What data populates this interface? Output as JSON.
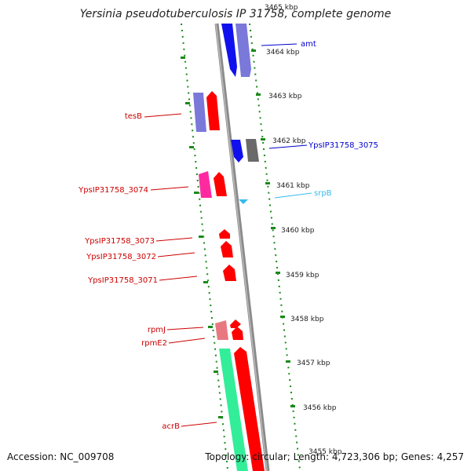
{
  "title": "Yersinia pseudotuberculosis IP 31758, complete genome",
  "footer": {
    "accession": "Accession: NC_009708",
    "topology": "Topology: circular; Length: 4,723,306 bp; Genes: 4,257"
  },
  "colors": {
    "forward_gene": "#ff0000",
    "forward_dark": "#1010ee",
    "reverse_blue": "#7a78d8",
    "label_red": "#cc0000",
    "label_blue": "#0000cc",
    "label_cyan": "#33bbee",
    "tick_green": "#1a8a1a",
    "backbone": "#8a8a8a"
  },
  "ticks": [
    "3465 kbp",
    "3464 kbp",
    "3463 kbp",
    "3462 kbp",
    "3461 kbp",
    "3460 kbp",
    "3459 kbp",
    "3458 kbp",
    "3457 kbp",
    "3456 kbp",
    "3455 kbp"
  ],
  "labels": [
    {
      "text": "amt",
      "color": "blue"
    },
    {
      "text": "tesB",
      "color": "red"
    },
    {
      "text": "YpsIP31758_3075",
      "color": "blue"
    },
    {
      "text": "YpsIP31758_3074",
      "color": "red"
    },
    {
      "text": "srpB",
      "color": "cyan"
    },
    {
      "text": "YpsIP31758_3073",
      "color": "red"
    },
    {
      "text": "YpsIP31758_3072",
      "color": "red"
    },
    {
      "text": "YpsIP31758_3071",
      "color": "red"
    },
    {
      "text": "rpmJ",
      "color": "red"
    },
    {
      "text": "rpmE2",
      "color": "red"
    },
    {
      "text": "acrB",
      "color": "red"
    }
  ]
}
